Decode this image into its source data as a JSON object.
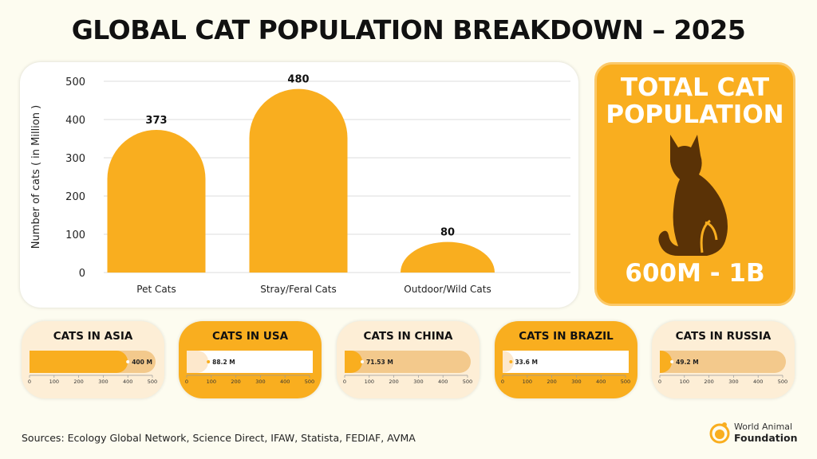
{
  "title": "GLOBAL CAT POPULATION BREAKDOWN – 2025",
  "chart_data": [
    {
      "type": "bar",
      "ylabel": "Number of cats ( in Million )",
      "xlabel": "",
      "ylim": [
        0,
        500
      ],
      "yticks": [
        0,
        100,
        200,
        300,
        400,
        500
      ],
      "grid": true,
      "categories": [
        "Pet Cats",
        "Stray/Feral Cats",
        "Outdoor/Wild Cats"
      ],
      "values": [
        373,
        480,
        80
      ],
      "color": "#f9ae1f"
    },
    {
      "type": "bar",
      "orientation": "horizontal",
      "title": "CATS IN ASIA",
      "values": [
        400
      ],
      "label": "400 M",
      "xlim": [
        0,
        500
      ],
      "xticks": [
        0,
        100,
        200,
        300,
        400,
        500
      ]
    },
    {
      "type": "bar",
      "orientation": "horizontal",
      "title": "CATS IN USA",
      "values": [
        88.2
      ],
      "label": "88.2 M",
      "xlim": [
        0,
        500
      ],
      "xticks": [
        0,
        100,
        200,
        300,
        400,
        500
      ]
    },
    {
      "type": "bar",
      "orientation": "horizontal",
      "title": "CATS IN CHINA",
      "values": [
        71.53
      ],
      "label": "71.53 M",
      "xlim": [
        0,
        500
      ],
      "xticks": [
        0,
        100,
        200,
        300,
        400,
        500
      ]
    },
    {
      "type": "bar",
      "orientation": "horizontal",
      "title": "CATS IN BRAZIL",
      "values": [
        33.6
      ],
      "label": "33.6 M",
      "xlim": [
        0,
        500
      ],
      "xticks": [
        0,
        100,
        200,
        300,
        400,
        500
      ]
    },
    {
      "type": "bar",
      "orientation": "horizontal",
      "title": "CATS IN RUSSIA",
      "values": [
        49.2
      ],
      "label": "49.2 M",
      "xlim": [
        0,
        500
      ],
      "xticks": [
        0,
        100,
        200,
        300,
        400,
        500
      ]
    }
  ],
  "total": {
    "title": "TOTAL CAT POPULATION",
    "value": "600M - 1B",
    "icon": "cat-silhouette-icon"
  },
  "colors": {
    "accent": "#f9ae1f",
    "light": "#fdeed6",
    "track": "#f3c98c",
    "cat": "#5a3206"
  },
  "sources": "Sources: Ecology Global Network, Science Direct, IFAW, Statista, FEDIAF, AVMA",
  "logo": {
    "line1": "World Animal",
    "line2": "Foundation"
  }
}
